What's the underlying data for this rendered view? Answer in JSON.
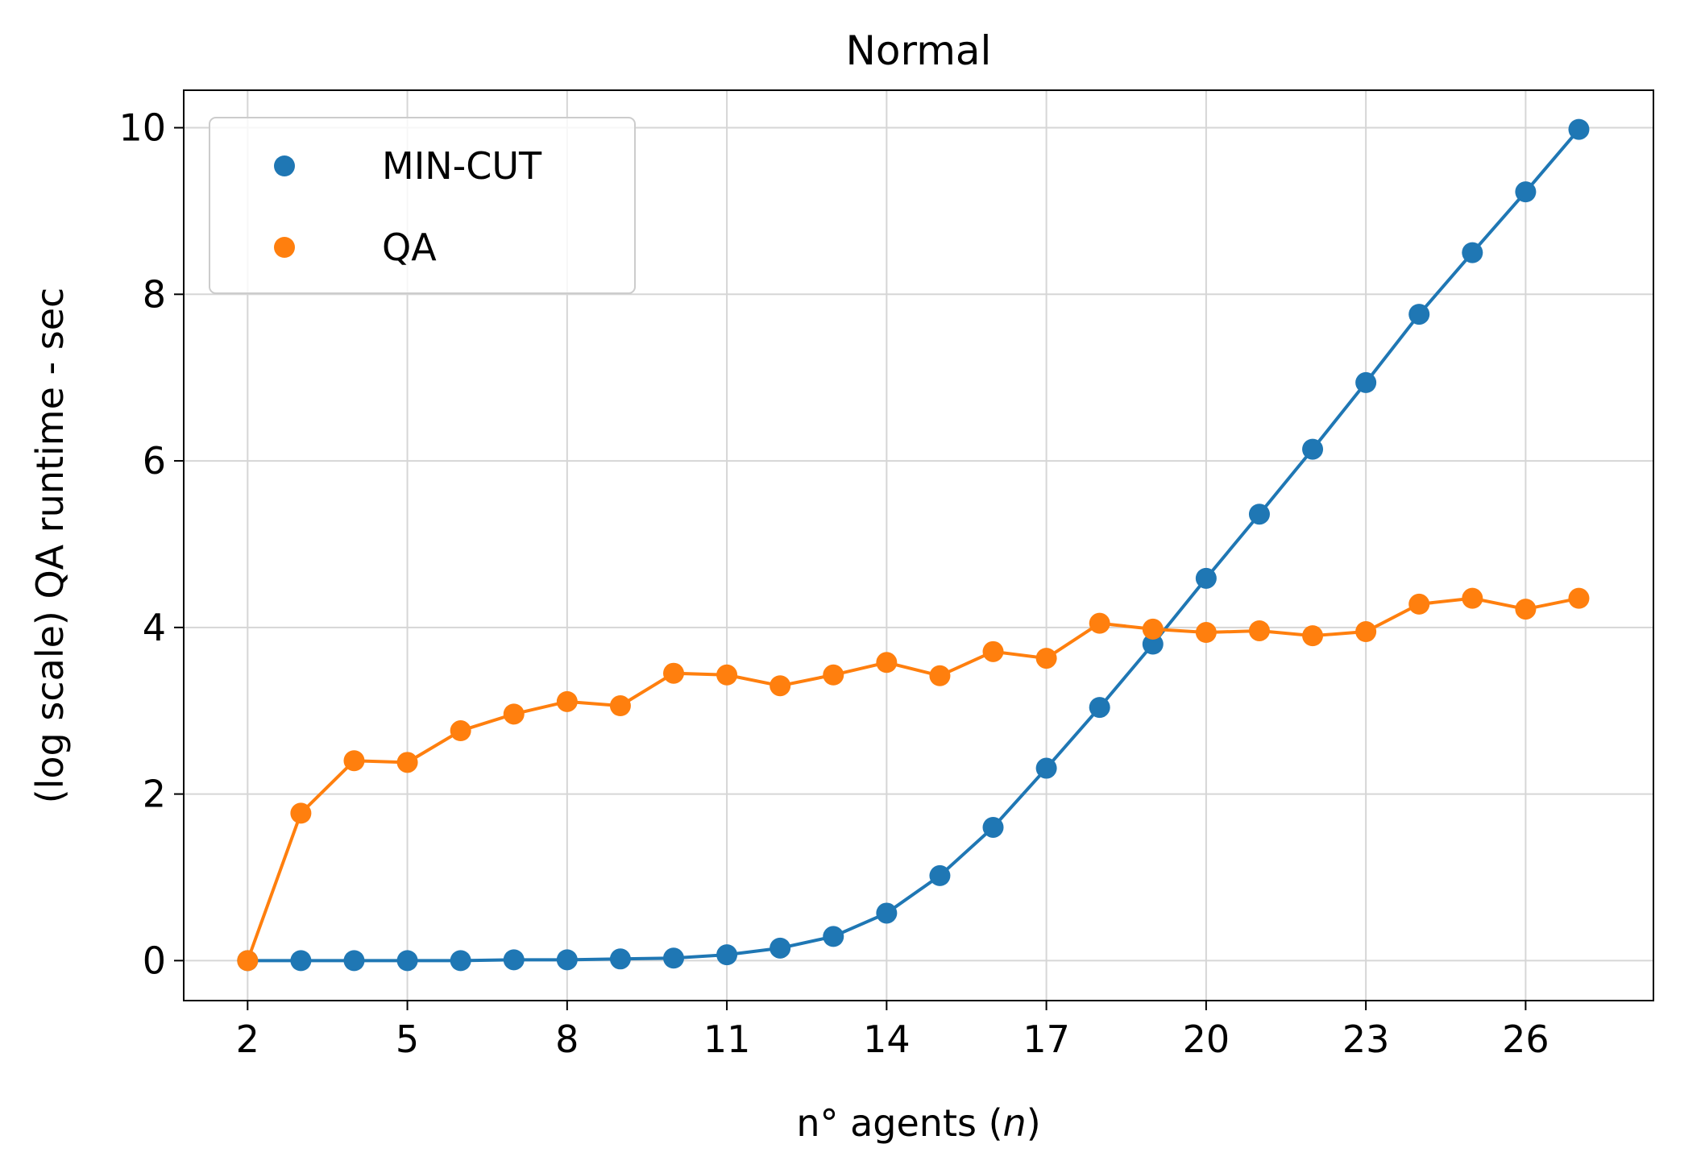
{
  "chart_data": {
    "type": "line",
    "title": "Normal",
    "xlabel": "n° agents (",
    "xlabel_var": "n",
    "xlabel_close": ")",
    "ylabel": "(log scale) QA runtime - sec",
    "xlim": [
      0.8,
      28.4
    ],
    "ylim": [
      -0.48,
      10.45
    ],
    "xticks": [
      2,
      5,
      8,
      11,
      14,
      17,
      20,
      23,
      26
    ],
    "yticks": [
      0,
      2,
      4,
      6,
      8,
      10
    ],
    "grid": true,
    "legend_position": "top-left",
    "x": [
      2,
      3,
      4,
      5,
      6,
      7,
      8,
      9,
      10,
      11,
      12,
      13,
      14,
      15,
      16,
      17,
      18,
      19,
      20,
      21,
      22,
      23,
      24,
      25,
      26,
      27
    ],
    "series": [
      {
        "name": "MIN-CUT",
        "color": "#1f77b4",
        "values": [
          0.0,
          0.0,
          0.0,
          0.0,
          0.0,
          0.01,
          0.01,
          0.02,
          0.03,
          0.07,
          0.15,
          0.29,
          0.57,
          1.02,
          1.6,
          2.31,
          3.04,
          3.8,
          4.59,
          5.36,
          6.14,
          6.94,
          7.76,
          8.5,
          9.23,
          9.98
        ]
      },
      {
        "name": "QA",
        "color": "#ff7f0e",
        "values": [
          0.0,
          1.77,
          2.4,
          2.38,
          2.76,
          2.96,
          3.11,
          3.06,
          3.45,
          3.43,
          3.3,
          3.43,
          3.58,
          3.42,
          3.71,
          3.63,
          4.05,
          3.98,
          3.94,
          3.96,
          3.9,
          3.95,
          4.28,
          4.35,
          4.22,
          4.35
        ]
      }
    ]
  }
}
